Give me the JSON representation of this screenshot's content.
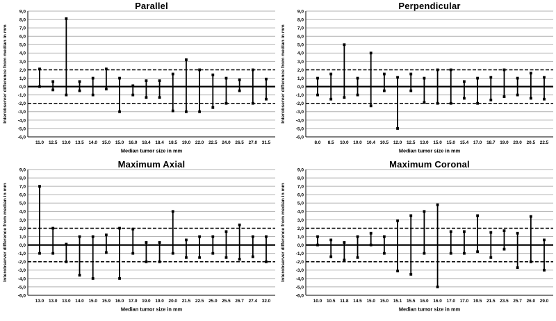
{
  "page": {
    "background": "#ffffff",
    "text_color": "#000000",
    "grid_color": "#b0b0b0",
    "data_color": "#000000"
  },
  "axes_common": {
    "ylabel": "Interobserver difference from median in mm",
    "xlabel": "Median tumor size in mm",
    "ylim": [
      -6,
      9
    ],
    "y_step": 1,
    "y_ticks": [
      "9,0",
      "8,0",
      "7,0",
      "6,0",
      "5,0",
      "4,0",
      "3,0",
      "2,0",
      "1,0",
      "0,0",
      "-1,0",
      "-2,0",
      "-3,0",
      "-4,0",
      "-5,0",
      "-6,0"
    ],
    "y_tick_values": [
      9,
      8,
      7,
      6,
      5,
      4,
      3,
      2,
      1,
      0,
      -1,
      -2,
      -3,
      -4,
      -5,
      -6
    ],
    "zero_line": 0,
    "dashed_limit_lines": [
      2,
      -2
    ],
    "grid": "on",
    "legend": "none"
  },
  "chart_data": [
    {
      "type": "rangebar",
      "title": "Parallel",
      "xlabel": "Median tumor size in mm",
      "ylabel": "Interobserver difference from median in mm",
      "ylim": [
        -6,
        9
      ],
      "reference_lines": {
        "solid": 0,
        "dashed": [
          2,
          -2
        ]
      },
      "categories": [
        "11.0",
        "12.5",
        "13.0",
        "13.5",
        "14.0",
        "15.0",
        "15.0",
        "16.0",
        "18.4",
        "18.4",
        "18.5",
        "19.0",
        "22.0",
        "22.5",
        "24.0",
        "26.5",
        "27.0",
        "31.5"
      ],
      "ranges": [
        [
          0.0,
          2.1
        ],
        [
          -0.4,
          0.6
        ],
        [
          -1.0,
          8.1
        ],
        [
          -0.5,
          0.6
        ],
        [
          -1.0,
          1.0
        ],
        [
          -0.3,
          2.1
        ],
        [
          -3.0,
          1.0
        ],
        [
          -1.0,
          0.1
        ],
        [
          -1.3,
          0.7
        ],
        [
          -1.3,
          0.7
        ],
        [
          -2.9,
          1.5
        ],
        [
          -3.0,
          3.2
        ],
        [
          -3.0,
          2.0
        ],
        [
          -2.5,
          1.4
        ],
        [
          -2.0,
          1.0
        ],
        [
          -0.5,
          0.8
        ],
        [
          -2.0,
          2.0
        ],
        [
          -1.5,
          0.9
        ]
      ]
    },
    {
      "type": "rangebar",
      "title": "Perpendicular",
      "xlabel": "Median tumor size in mm",
      "ylabel": "Interobserver difference from median in mm",
      "ylim": [
        -6,
        9
      ],
      "reference_lines": {
        "solid": 0,
        "dashed": [
          2,
          -2
        ]
      },
      "categories": [
        "8.0",
        "8.5",
        "10.0",
        "10.0",
        "10.4",
        "10.5",
        "12.0",
        "12.5",
        "13.0",
        "15.0",
        "15.0",
        "15.4",
        "17.0",
        "18.7",
        "19.0",
        "20.0",
        "20.5",
        "22.5"
      ],
      "ranges": [
        [
          -1.0,
          1.0
        ],
        [
          -1.5,
          1.5
        ],
        [
          -1.3,
          5.0
        ],
        [
          -1.0,
          1.0
        ],
        [
          -2.3,
          4.0
        ],
        [
          -0.5,
          1.5
        ],
        [
          -5.0,
          1.1
        ],
        [
          -0.5,
          1.5
        ],
        [
          -1.9,
          1.0
        ],
        [
          -2.0,
          2.0
        ],
        [
          -2.0,
          2.0
        ],
        [
          -1.4,
          0.6
        ],
        [
          -2.0,
          1.0
        ],
        [
          -1.6,
          1.1
        ],
        [
          -1.2,
          2.0
        ],
        [
          -1.0,
          1.0
        ],
        [
          -1.4,
          1.6
        ],
        [
          -1.5,
          1.1
        ]
      ]
    },
    {
      "type": "rangebar",
      "title": "Maximum Axial",
      "xlabel": "Median tumor size in mm",
      "ylabel": "Interobserver difference from median in mm",
      "ylim": [
        -6,
        9
      ],
      "reference_lines": {
        "solid": 0,
        "dashed": [
          2,
          -2
        ]
      },
      "categories": [
        "13.0",
        "13.0",
        "13.0",
        "14.0",
        "15.0",
        "15.9",
        "16.0",
        "17.0",
        "19.0",
        "19.0",
        "20.0",
        "21.5",
        "22.5",
        "25.0",
        "25.5",
        "26.7",
        "27.4",
        "32.0"
      ],
      "ranges": [
        [
          -1.0,
          7.0
        ],
        [
          -1.0,
          2.0
        ],
        [
          -2.0,
          0.1
        ],
        [
          -3.6,
          1.0
        ],
        [
          -4.0,
          1.0
        ],
        [
          -0.9,
          1.2
        ],
        [
          -4.0,
          2.0
        ],
        [
          -1.0,
          1.9
        ],
        [
          -2.0,
          0.3
        ],
        [
          -2.0,
          0.3
        ],
        [
          -1.0,
          4.0
        ],
        [
          -1.5,
          0.6
        ],
        [
          -1.5,
          1.0
        ],
        [
          -1.0,
          1.0
        ],
        [
          -1.5,
          1.6
        ],
        [
          -1.7,
          2.4
        ],
        [
          -1.4,
          1.0
        ],
        [
          -2.0,
          1.0
        ]
      ]
    },
    {
      "type": "rangebar",
      "title": "Maximum Coronal",
      "xlabel": "Median tumor size in mm",
      "ylabel": "Interobserver difference from median in mm",
      "ylim": [
        -6,
        9
      ],
      "reference_lines": {
        "solid": 0,
        "dashed": [
          2,
          -2
        ]
      },
      "categories": [
        "10.0",
        "10.5",
        "11.8",
        "14.5",
        "15.0",
        "15.0",
        "15.1",
        "15.5",
        "16.0",
        "16.0",
        "17.0",
        "17.0",
        "19.5",
        "21.5",
        "23.5",
        "25.7",
        "26.0",
        "29.0"
      ],
      "ranges": [
        [
          0.0,
          1.0
        ],
        [
          -1.4,
          0.6
        ],
        [
          -1.8,
          0.3
        ],
        [
          -1.5,
          1.0
        ],
        [
          0.0,
          1.4
        ],
        [
          -1.0,
          1.0
        ],
        [
          -3.1,
          2.9
        ],
        [
          -3.5,
          3.5
        ],
        [
          -1.0,
          4.0
        ],
        [
          -5.0,
          4.8
        ],
        [
          -1.0,
          1.6
        ],
        [
          -1.0,
          1.6
        ],
        [
          -0.8,
          3.5
        ],
        [
          -1.5,
          1.5
        ],
        [
          -0.5,
          1.7
        ],
        [
          -2.7,
          1.4
        ],
        [
          -2.0,
          3.4
        ],
        [
          -3.0,
          0.6
        ]
      ]
    }
  ]
}
